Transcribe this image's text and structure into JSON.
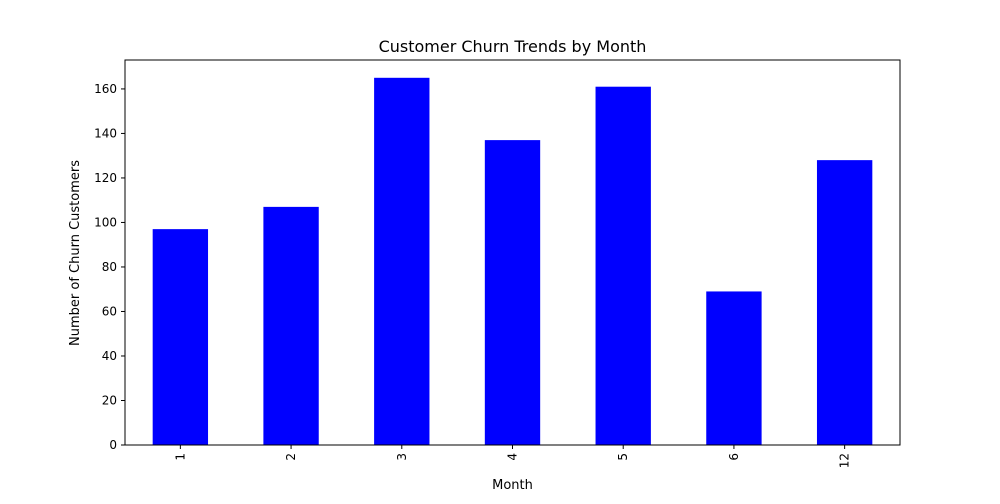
{
  "chart_data": {
    "type": "bar",
    "title": "Customer Churn Trends by Month",
    "xlabel": "Month",
    "ylabel": "Number of Churn Customers",
    "categories": [
      "1",
      "2",
      "3",
      "4",
      "5",
      "6",
      "12"
    ],
    "values": [
      97,
      107,
      165,
      137,
      161,
      69,
      128
    ],
    "ylim": [
      0,
      173
    ],
    "yticks": [
      0,
      20,
      40,
      60,
      80,
      100,
      120,
      140,
      160
    ],
    "xtick_rotation": "vertical",
    "grid": false,
    "legend": false,
    "bar_color": "#0000ff"
  }
}
